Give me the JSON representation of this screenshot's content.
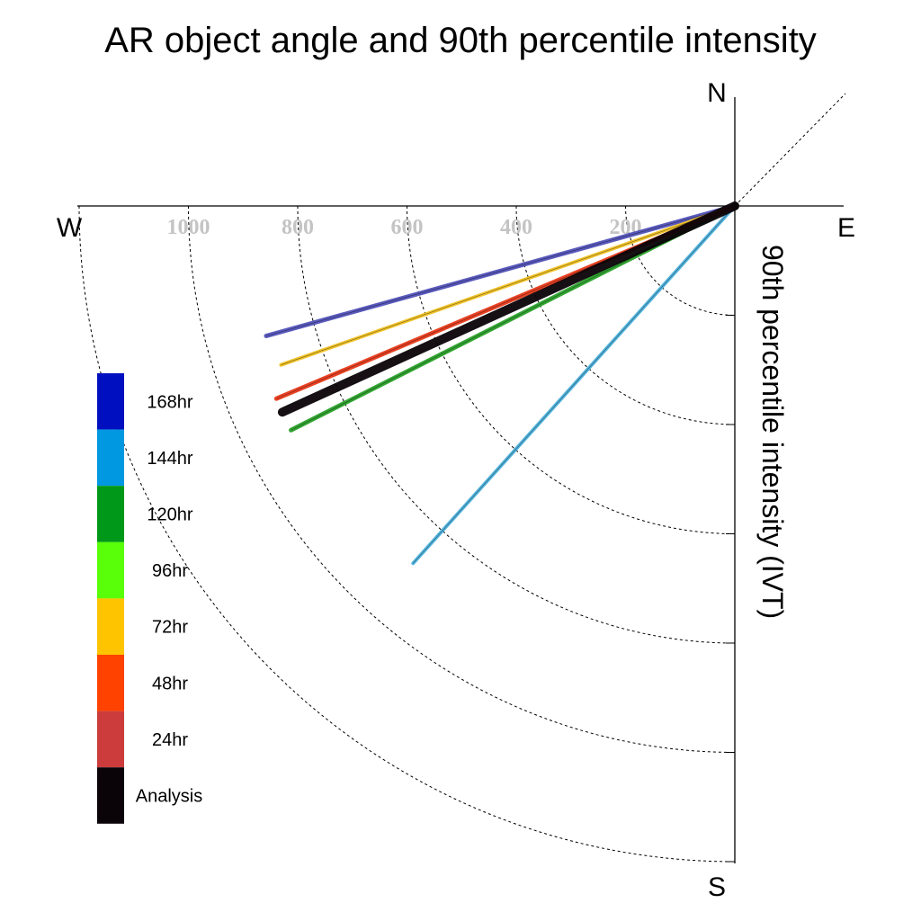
{
  "chart_data": {
    "type": "line",
    "title": "AR object angle and 90th percentile intensity",
    "ylabel": "90th percentile intensity (IVT)",
    "compass": {
      "north": "N",
      "south": "S",
      "east": "E",
      "west": "W"
    },
    "radial_ticks": [
      200,
      400,
      600,
      800,
      1000
    ],
    "radial_ticks_labeled": [
      "1000",
      "800",
      "600",
      "400",
      "200"
    ],
    "rmax": 1200,
    "grid": true,
    "legend_position": "left",
    "series": [
      {
        "name": "168hr",
        "intensity": 890,
        "angle_deg": 195.5,
        "color": "#5050b8",
        "width": 5
      },
      {
        "name": "144hr",
        "intensity": 880,
        "angle_deg": 228,
        "color": "#4ab0dc",
        "width": 4
      },
      {
        "name": "120hr",
        "intensity": 910,
        "angle_deg": 206.8,
        "color": "#28a028",
        "width": 5
      },
      {
        "name": "72hr",
        "intensity": 880,
        "angle_deg": 199.3,
        "color": "#f0c020",
        "width": 4
      },
      {
        "name": "48hr",
        "intensity": 910,
        "angle_deg": 202.8,
        "color": "#e83818",
        "width": 5
      },
      {
        "name": "Analysis",
        "intensity": 910,
        "angle_deg": 204.5,
        "color": "#0a0308",
        "width": 10
      }
    ],
    "colorbar": [
      {
        "label": "168hr",
        "color": "#0010c0"
      },
      {
        "label": "144hr",
        "color": "#0098e0"
      },
      {
        "label": "120hr",
        "color": "#009818"
      },
      {
        "label": "96hr",
        "color": "#58ff08"
      },
      {
        "label": "72hr",
        "color": "#ffc400"
      },
      {
        "label": "48hr",
        "color": "#ff4200"
      },
      {
        "label": "24hr",
        "color": "#cc3c3c"
      },
      {
        "label": "Analysis",
        "color": "#0a0308"
      }
    ]
  }
}
